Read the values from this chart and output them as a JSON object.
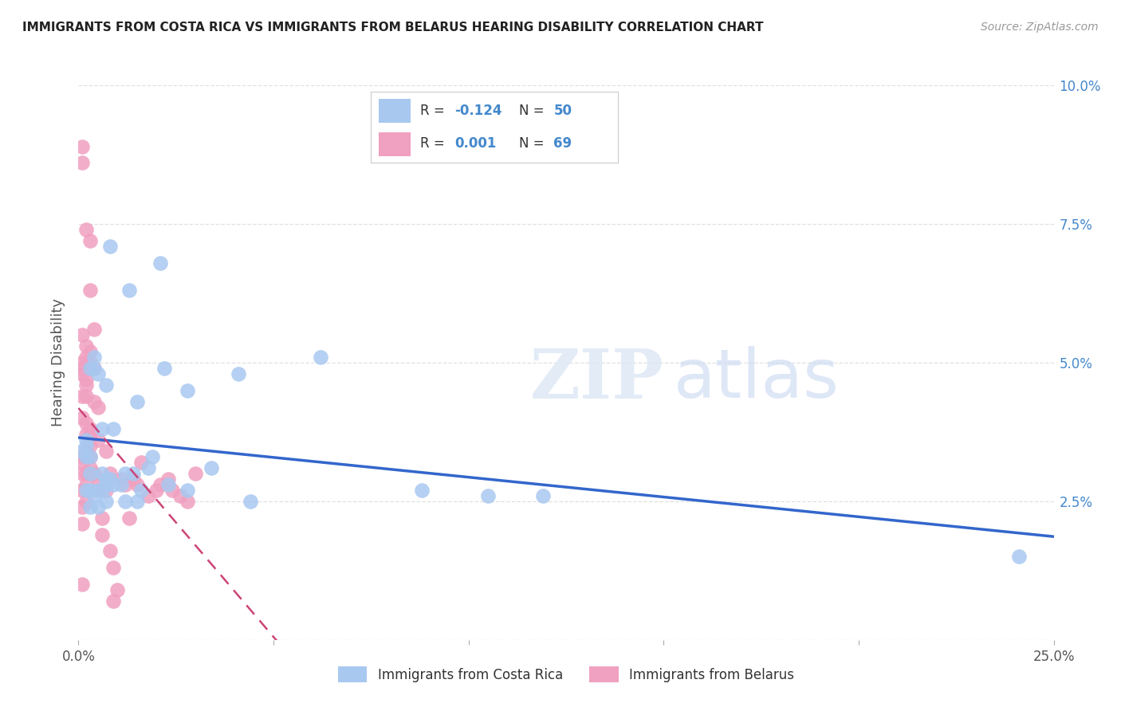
{
  "title": "IMMIGRANTS FROM COSTA RICA VS IMMIGRANTS FROM BELARUS HEARING DISABILITY CORRELATION CHART",
  "source": "Source: ZipAtlas.com",
  "ylabel": "Hearing Disability",
  "xlim": [
    0.0,
    0.25
  ],
  "ylim": [
    0.0,
    0.1
  ],
  "xticks": [
    0.0,
    0.05,
    0.1,
    0.15,
    0.2,
    0.25
  ],
  "yticks": [
    0.0,
    0.025,
    0.05,
    0.075,
    0.1
  ],
  "xtick_labels": [
    "0.0%",
    "",
    "",
    "",
    "",
    "25.0%"
  ],
  "ytick_labels_right": [
    "",
    "2.5%",
    "5.0%",
    "7.5%",
    "10.0%"
  ],
  "background_color": "#ffffff",
  "grid_color": "#e0e0e0",
  "costa_rica_color": "#a8c8f0",
  "belarus_color": "#f0a0c0",
  "costa_rica_line_color": "#3366cc",
  "belarus_line_color": "#cc4477",
  "costa_rica_R": -0.124,
  "costa_rica_N": 50,
  "belarus_R": 0.001,
  "belarus_N": 69,
  "costa_rica_x": [
    0.021,
    0.008,
    0.013,
    0.004,
    0.062,
    0.004,
    0.022,
    0.003,
    0.005,
    0.041,
    0.007,
    0.028,
    0.015,
    0.009,
    0.006,
    0.002,
    0.002,
    0.001,
    0.003,
    0.002,
    0.019,
    0.034,
    0.018,
    0.012,
    0.014,
    0.006,
    0.003,
    0.007,
    0.008,
    0.009,
    0.007,
    0.011,
    0.023,
    0.028,
    0.016,
    0.005,
    0.006,
    0.002,
    0.003,
    0.088,
    0.105,
    0.119,
    0.241,
    0.004,
    0.007,
    0.015,
    0.012,
    0.044,
    0.005,
    0.003
  ],
  "costa_rica_y": [
    0.068,
    0.071,
    0.063,
    0.051,
    0.051,
    0.049,
    0.049,
    0.049,
    0.048,
    0.048,
    0.046,
    0.045,
    0.043,
    0.038,
    0.038,
    0.036,
    0.035,
    0.034,
    0.033,
    0.033,
    0.033,
    0.031,
    0.031,
    0.03,
    0.03,
    0.03,
    0.03,
    0.029,
    0.029,
    0.028,
    0.028,
    0.028,
    0.028,
    0.027,
    0.027,
    0.027,
    0.027,
    0.027,
    0.027,
    0.027,
    0.026,
    0.026,
    0.015,
    0.026,
    0.025,
    0.025,
    0.025,
    0.025,
    0.024,
    0.024
  ],
  "belarus_x": [
    0.001,
    0.001,
    0.001,
    0.001,
    0.001,
    0.001,
    0.001,
    0.001,
    0.001,
    0.001,
    0.001,
    0.001,
    0.001,
    0.001,
    0.001,
    0.002,
    0.002,
    0.002,
    0.002,
    0.002,
    0.002,
    0.002,
    0.002,
    0.002,
    0.002,
    0.002,
    0.002,
    0.002,
    0.003,
    0.003,
    0.003,
    0.003,
    0.003,
    0.003,
    0.003,
    0.003,
    0.003,
    0.003,
    0.004,
    0.004,
    0.004,
    0.004,
    0.005,
    0.005,
    0.005,
    0.005,
    0.006,
    0.006,
    0.007,
    0.007,
    0.008,
    0.008,
    0.009,
    0.009,
    0.01,
    0.011,
    0.012,
    0.013,
    0.014,
    0.015,
    0.016,
    0.018,
    0.02,
    0.021,
    0.023,
    0.024,
    0.026,
    0.028,
    0.03
  ],
  "belarus_y": [
    0.089,
    0.086,
    0.055,
    0.05,
    0.049,
    0.048,
    0.044,
    0.04,
    0.033,
    0.032,
    0.03,
    0.027,
    0.024,
    0.021,
    0.01,
    0.074,
    0.053,
    0.051,
    0.047,
    0.046,
    0.044,
    0.039,
    0.037,
    0.034,
    0.033,
    0.03,
    0.028,
    0.025,
    0.072,
    0.063,
    0.052,
    0.05,
    0.049,
    0.038,
    0.037,
    0.035,
    0.033,
    0.031,
    0.056,
    0.049,
    0.043,
    0.03,
    0.042,
    0.036,
    0.029,
    0.027,
    0.022,
    0.019,
    0.034,
    0.027,
    0.03,
    0.016,
    0.013,
    0.007,
    0.009,
    0.029,
    0.028,
    0.022,
    0.029,
    0.028,
    0.032,
    0.026,
    0.027,
    0.028,
    0.029,
    0.027,
    0.026,
    0.025,
    0.03
  ]
}
